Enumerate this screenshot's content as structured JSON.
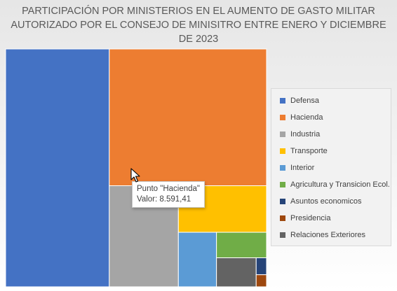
{
  "chart_data": {
    "type": "treemap",
    "title": "PARTICIPACIÓN POR MINISTERIOS EN EL AUMENTO DE GASTO MILITAR AUTORIZADO POR EL CONSEJO DE MINISITRO ENTRE ENERO Y DICIEMBRE DE 2023",
    "legend_position": "right",
    "series": [
      {
        "name": "Defensa",
        "value": 9850,
        "color": "#4472c4"
      },
      {
        "name": "Hacienda",
        "value": 8591.41,
        "color": "#ed7d31"
      },
      {
        "name": "Industria",
        "value": 2790,
        "color": "#a5a5a5"
      },
      {
        "name": "Transporte",
        "value": 1640,
        "color": "#ffc000"
      },
      {
        "name": "Interior",
        "value": 830,
        "color": "#5b9bd5"
      },
      {
        "name": "Agricultura y Transicion Ecol.",
        "value": 510,
        "color": "#70ad47"
      },
      {
        "name": "Asuntos economicos",
        "value": 70,
        "color": "#264478"
      },
      {
        "name": "Presidencia",
        "value": 50,
        "color": "#9e480e"
      },
      {
        "name": "Relaciones Exteriores",
        "value": 460,
        "color": "#636363"
      }
    ]
  },
  "tooltip": {
    "line1": "Punto \"Hacienda\"",
    "line2": "Valor: 8.591,41"
  }
}
